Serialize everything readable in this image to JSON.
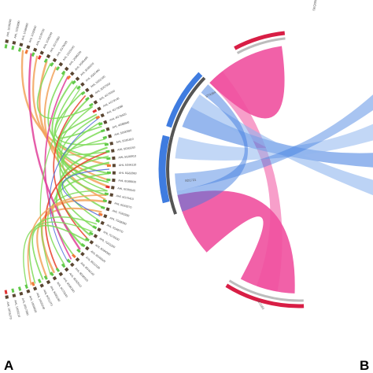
{
  "panels": [
    {
      "id": "A",
      "letter": "A"
    },
    {
      "id": "B",
      "letter": "B"
    }
  ],
  "panel_a": {
    "colors": {
      "green": "#7ddb57",
      "orange": "#f2a35c",
      "pink": "#e0409a",
      "red": "#e8402a",
      "blue": "#4a66d8",
      "marker_square": "#5a4632",
      "ring_green": "#61c94a",
      "ring_orange": "#f07a3a",
      "ring_red": "#e03232"
    },
    "labels": [
      "AHL 1G36290",
      "AHL 1G50890",
      "AHL 1G86860",
      "AHL 1G55840",
      "AHL 1G78720",
      "AHL 1G85240",
      "AHL 2G70350",
      "AHL 2G79020",
      "AHL 2G25140",
      "AHL 2G86230",
      "AHL 3G85490",
      "AHL 3G85370",
      "AHL 3G87490",
      "AHL 3G51300",
      "AHL 3G57550",
      "AHL 4G79340",
      "AHL 4G79140",
      "AHL 4G79080",
      "AHL 4G79420",
      "AHL 4G88940",
      "AHL 5G90590",
      "AHL 5G81810",
      "AHL 5G93240",
      "AHL 5G90910",
      "AHL 5G96110",
      "AHL 6G82860",
      "AHL 6G88930",
      "AHL 6G80540",
      "AHL 6G70410",
      "AHL 6G69270",
      "AHL 7G82930",
      "AHL 7G08390",
      "AHL 7G48770",
      "AHL 7G76030",
      "AHL 7G02250",
      "AHL 8G84390",
      "AHL 8G46500",
      "AHL 8G10180",
      "AHL 8G46140",
      "AHL 8G90310",
      "AHL 9G82010",
      "AHL 9G82340",
      "AHL 9G70540",
      "AHL 9G81180",
      "AHL 9G51270",
      "AHL 10G5240",
      "AHL 10G6630",
      "AHL 10G7680",
      "AHL 10G8110",
      "AHL 10G5270"
    ]
  },
  "panel_b": {
    "colors": {
      "pink": "#f0509e",
      "red_ring": "#d81e45",
      "blue": "#3f7ce0",
      "light_blue": "#8fb6ef",
      "dark_ring": "#555555",
      "gray_ring": "#bdbdbd"
    },
    "labels": {
      "top": "SEQ0001",
      "upper_left": "ST4264",
      "left": "SD1721",
      "bottom": "ZL1183"
    }
  }
}
